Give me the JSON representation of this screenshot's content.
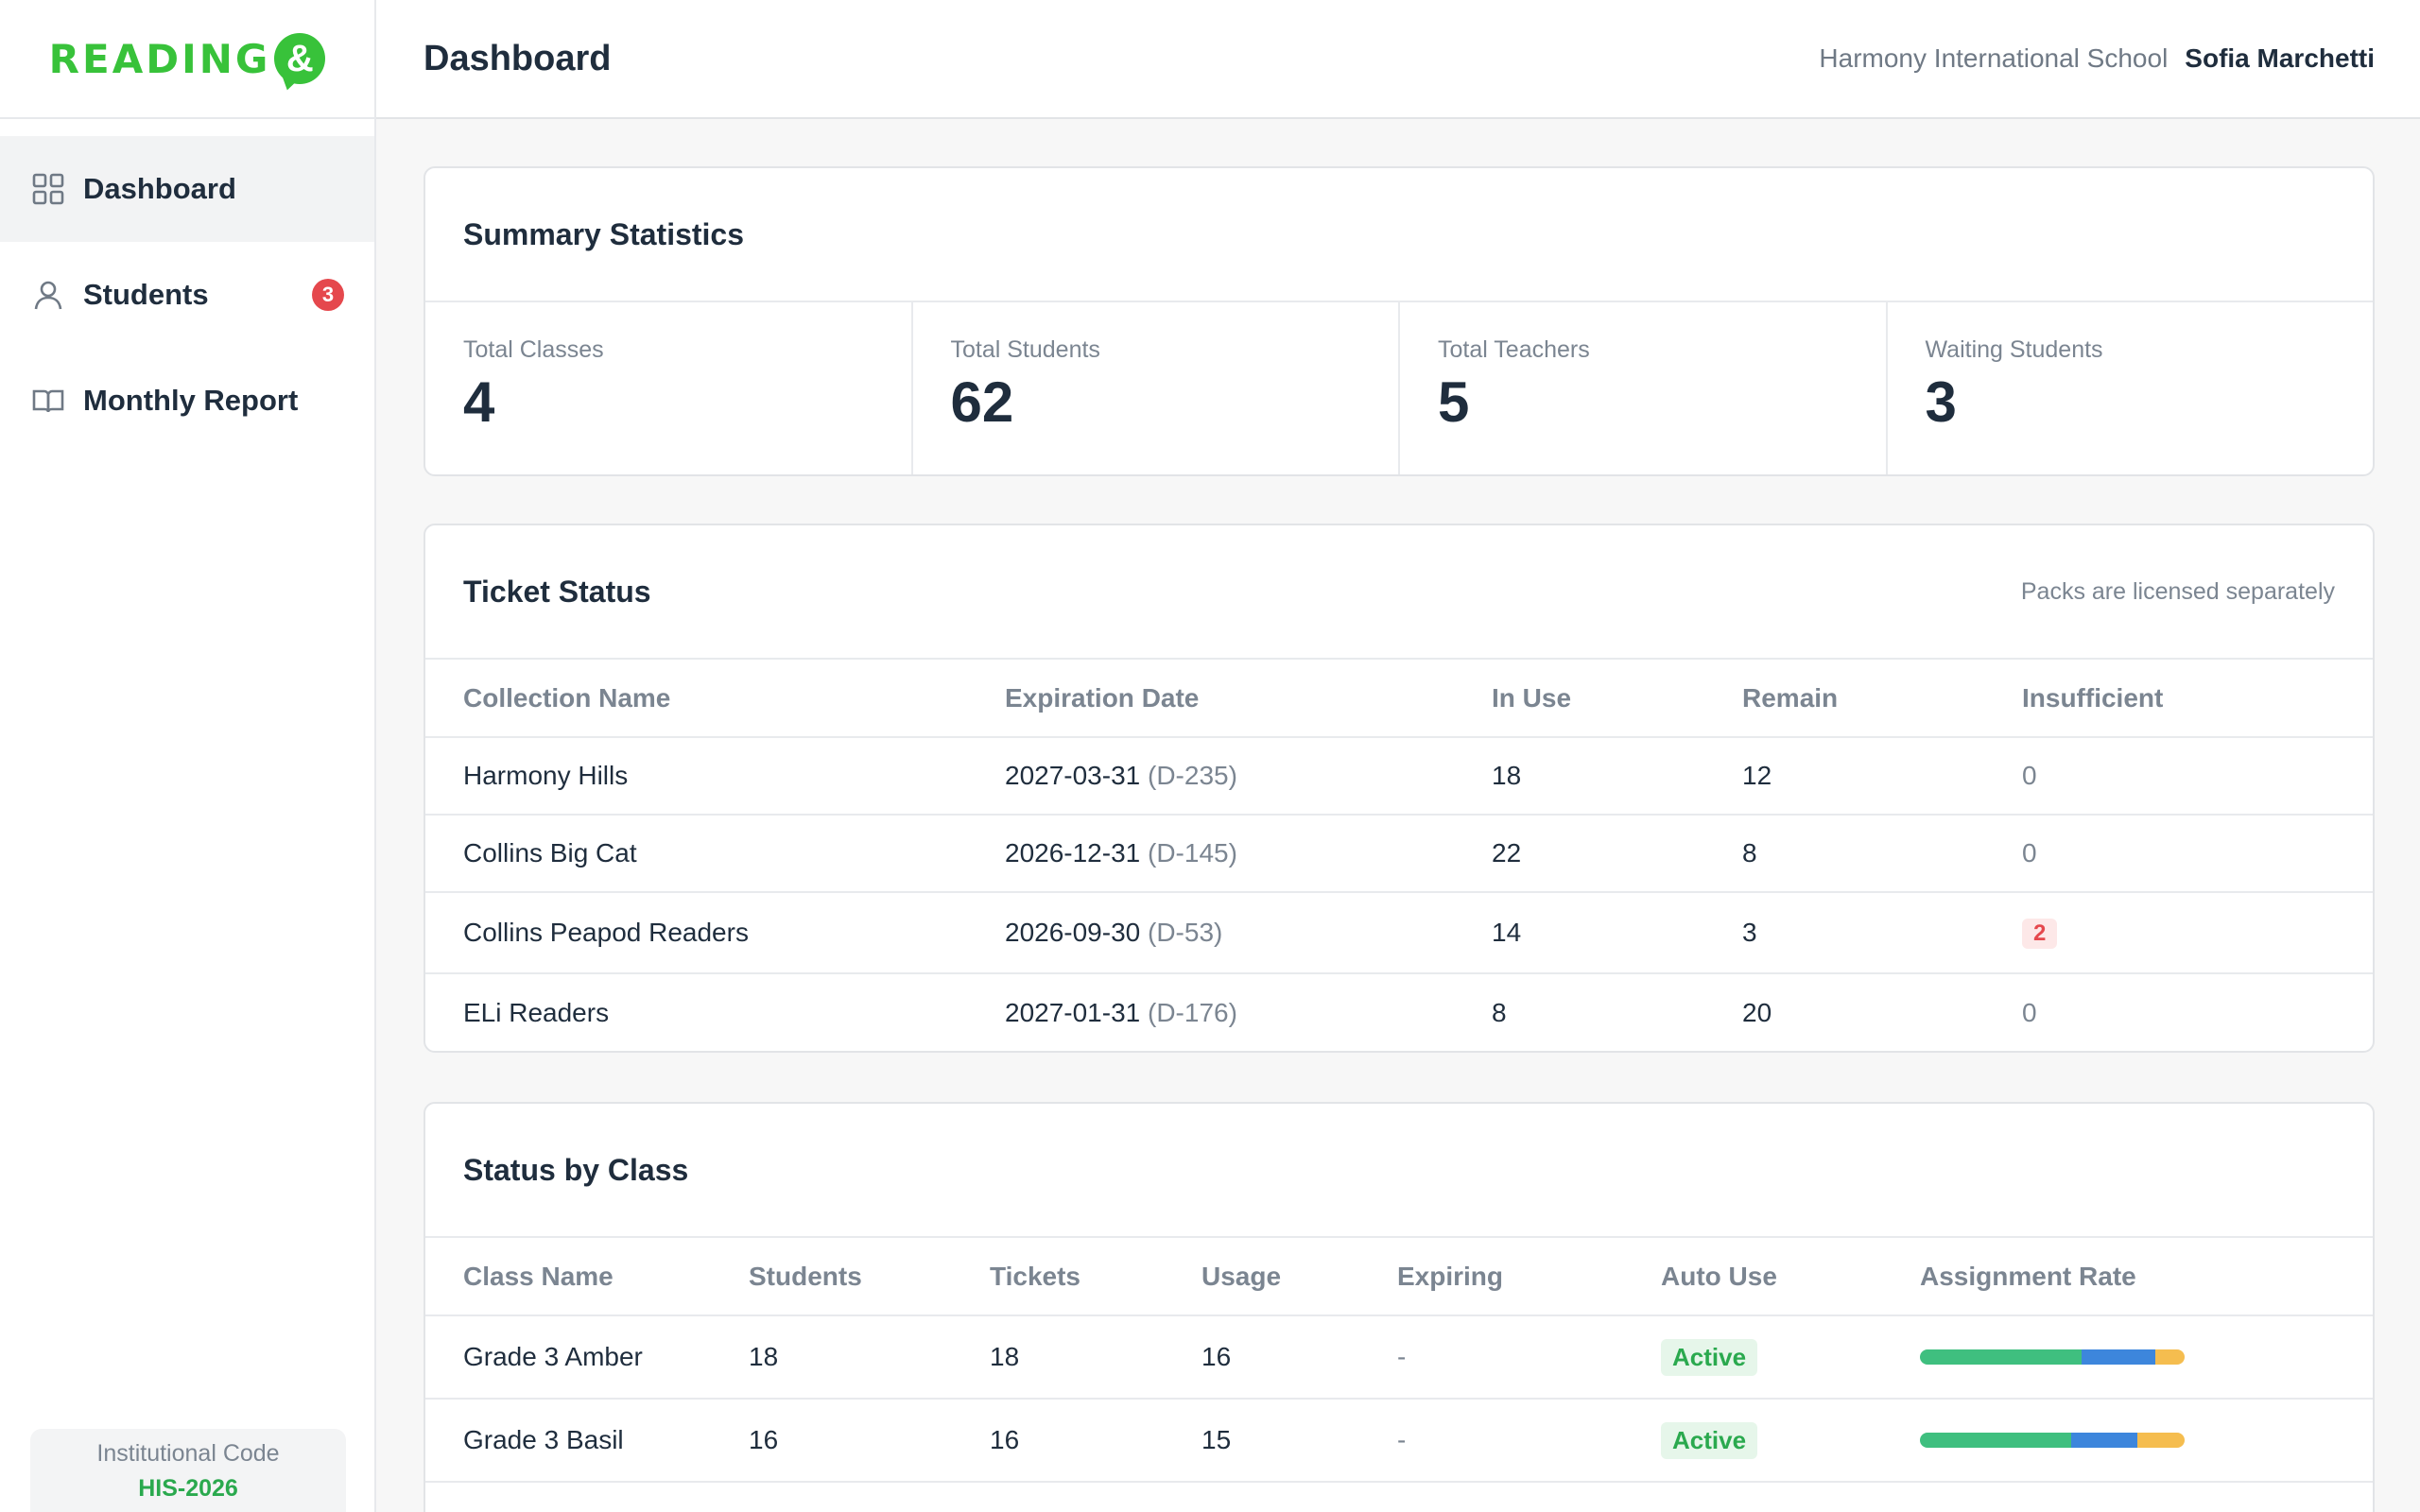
{
  "brand": {
    "logo_text": "READING",
    "logo_mark": "&"
  },
  "header": {
    "title": "Dashboard",
    "school": "Harmony International School",
    "user": "Sofia Marchetti"
  },
  "sidebar": {
    "items": [
      {
        "label": "Dashboard",
        "icon": "grid-icon",
        "active": true
      },
      {
        "label": "Students",
        "icon": "user-icon",
        "badge": "3"
      },
      {
        "label": "Monthly Report",
        "icon": "book-icon"
      }
    ],
    "institution": {
      "label": "Institutional Code",
      "code": "HIS-2026"
    }
  },
  "summary": {
    "title": "Summary Statistics",
    "stats": [
      {
        "label": "Total Classes",
        "value": "4"
      },
      {
        "label": "Total Students",
        "value": "62"
      },
      {
        "label": "Total Teachers",
        "value": "5"
      },
      {
        "label": "Waiting Students",
        "value": "3"
      }
    ]
  },
  "tickets": {
    "title": "Ticket Status",
    "note": "Packs are licensed separately",
    "columns": [
      "Collection Name",
      "Expiration Date",
      "In Use",
      "Remain",
      "Insufficient"
    ],
    "rows": [
      {
        "name": "Harmony Hills",
        "date": "2027-03-31",
        "dday": "(D-235)",
        "in_use": "18",
        "remain": "12",
        "insufficient": "0"
      },
      {
        "name": "Collins Big Cat",
        "date": "2026-12-31",
        "dday": "(D-145)",
        "in_use": "22",
        "remain": "8",
        "insufficient": "0"
      },
      {
        "name": "Collins Peapod Readers",
        "date": "2026-09-30",
        "dday": "(D-53)",
        "in_use": "14",
        "remain": "3",
        "insufficient": "2"
      },
      {
        "name": "ELi Readers",
        "date": "2027-01-31",
        "dday": "(D-176)",
        "in_use": "8",
        "remain": "20",
        "insufficient": "0"
      }
    ]
  },
  "classes": {
    "title": "Status by Class",
    "columns": [
      "Class Name",
      "Students",
      "Tickets",
      "Usage",
      "Expiring",
      "Auto Use",
      "Assignment Rate"
    ],
    "rows": [
      {
        "name": "Grade 3 Amber",
        "students": "18",
        "tickets": "18",
        "usage": "16",
        "expiring": "-",
        "auto_use": "Active",
        "rate": {
          "green": 0.61,
          "blue": 0.28,
          "yellow": 0.11
        }
      },
      {
        "name": "Grade 3 Basil",
        "students": "16",
        "tickets": "16",
        "usage": "15",
        "expiring": "-",
        "auto_use": "Active",
        "rate": {
          "green": 0.57,
          "blue": 0.25,
          "yellow": 0.18
        }
      }
    ]
  },
  "colors": {
    "brand_green": "#38c23a",
    "badge_red": "#e5484d",
    "active_green": "#2aa94e",
    "bar_green": "#3fbf7f",
    "bar_blue": "#3d86dc",
    "bar_yellow": "#f5bd4f"
  }
}
